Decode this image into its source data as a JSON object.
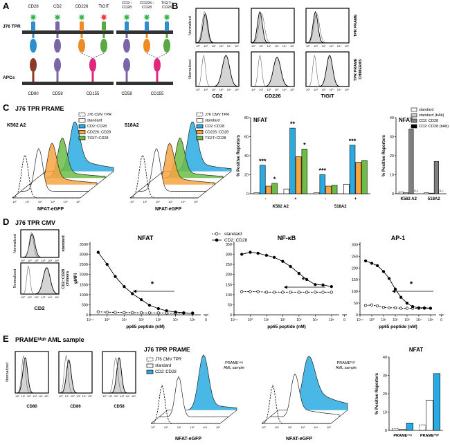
{
  "panel_letters": [
    "A",
    "B",
    "C",
    "D",
    "E"
  ],
  "hist_ticks": [
    "10⁰",
    "10¹",
    "10²",
    "10³",
    "10⁴",
    "10⁵"
  ],
  "panel_a": {
    "cell_label": "J76 TPR",
    "apc_label": "APCs",
    "receptors": [
      "CD28",
      "CD2",
      "CD226",
      "TIGIT"
    ],
    "chimeras": [
      "CD2::CD28",
      "CD226::CD28",
      "TIGIT::CD28"
    ],
    "ligands": [
      "CD80",
      "CD58",
      "CD155"
    ],
    "chimera_ligands": [
      "CD58",
      "CD155"
    ]
  },
  "panel_b": {
    "y_label": "Normalized",
    "row_labels": [
      "TPR PRAME",
      "TPR PRAME CHIMERAS"
    ],
    "x_labels": [
      "CD2",
      "CD226",
      "TIGIT"
    ]
  },
  "panel_c": {
    "title": "J76 TPR PRAME",
    "targets": [
      "K562 A2",
      "518A2"
    ],
    "x_label": "NFAT-eGFP",
    "legend": [
      {
        "name": "J76 CMV TPR",
        "color": "#000000",
        "dashed": true
      },
      {
        "name": "standard",
        "color": "#ffffff"
      },
      {
        "name": "CD2::CD28",
        "color": "#29abe2"
      },
      {
        "name": "CD226::CD28",
        "color": "#f7a541"
      },
      {
        "name": "TIGIT::CD28",
        "color": "#6cbd45"
      }
    ]
  },
  "panel_d": {
    "title": "J76 TPR CMV",
    "hist_y_label": "Normalized",
    "row_labels": [
      "standard",
      "CD2::CD28 chimera"
    ],
    "x_label": "CD2"
  },
  "panel_e": {
    "title": "PRAMEʰⁱᵍʰ AML sample",
    "hist_y_label": "Normalized",
    "x_labels": [
      "CD80",
      "CD86",
      "CD58"
    ],
    "reporter_title": "J76 TPR PRAME",
    "x_label": "NFAT-eGFP",
    "legend": [
      {
        "name": "J76 CMV TPR",
        "color": "#000000",
        "dashed": true
      },
      {
        "name": "standard",
        "color": "#ffffff"
      },
      {
        "name": "CD2::CD28",
        "color": "#29abe2"
      }
    ],
    "samples": [
      [
        "PRAMEⁿᵉᵍ",
        "AML sample"
      ],
      [
        "PRAMEʰⁱᵍʰ",
        "AML sample"
      ]
    ]
  },
  "chart_data": [
    {
      "type": "bar",
      "title": "NFAT",
      "y_label": "% Positive Reporters",
      "categories": [
        "-",
        "+",
        "-",
        "+"
      ],
      "groups": [
        "K562 A2",
        "518A2"
      ],
      "ylim": [
        0,
        80
      ],
      "yticks": [
        0,
        20,
        40,
        60,
        80
      ],
      "series": [
        {
          "color": "#ffffff",
          "values": [
            1,
            5,
            1,
            10
          ]
        },
        {
          "color": "#29abe2",
          "values": [
            30,
            69,
            20,
            51
          ]
        },
        {
          "color": "#f7a541",
          "values": [
            8,
            39,
            8,
            33
          ]
        },
        {
          "color": "#6cbd45",
          "values": [
            11,
            47,
            9,
            35
          ]
        }
      ],
      "annotations": [
        "***",
        "*",
        "**",
        "*",
        "***",
        "***"
      ]
    },
    {
      "type": "bar",
      "title": "NFAT",
      "y_label": "% Positive Reporters",
      "categories": [
        "K562 A2",
        "518A2"
      ],
      "ylim": [
        0,
        40
      ],
      "yticks": [
        0,
        10,
        20,
        30,
        40
      ],
      "legend": true,
      "series": [
        {
          "name": "standard",
          "color": "#ffffff",
          "values": [
            1,
            0.5
          ]
        },
        {
          "name": "standard (bAb)",
          "color": "#c8c8c8",
          "values": [
            0.5,
            0.3
          ]
        },
        {
          "name": "CD2::CD28",
          "color": "#808080",
          "values": [
            34,
            17
          ]
        },
        {
          "name": "CD2::CD28 (bAb)",
          "color": "#000000",
          "values": [
            null,
            null
          ],
          "value_labels": [
            "n.r.",
            "n.r."
          ]
        }
      ]
    },
    {
      "type": "line",
      "title": "NFAT",
      "y_label": "gMFI",
      "x_label": "pp65 peptide (nM)",
      "xlog": true,
      "x": [
        0.3,
        1,
        3,
        10,
        30,
        100,
        300,
        1000,
        3000,
        10000,
        30000,
        100000
      ],
      "xlim": [
        0.1,
        300000
      ],
      "xticks": [
        {
          "value": 0.1,
          "label": "10⁻¹"
        },
        {
          "value": 1,
          "label": "10⁰"
        },
        {
          "value": 10,
          "label": "10¹"
        },
        {
          "value": 100,
          "label": "10²"
        },
        {
          "value": 1000,
          "label": "10³"
        },
        {
          "value": 10000,
          "label": "10⁴"
        },
        {
          "value": 100000,
          "label": "10⁵"
        }
      ],
      "x_break_tick": 0,
      "ylim": [
        0,
        3600
      ],
      "yticks": [
        0,
        500,
        1000,
        1500,
        2000,
        2500,
        3000,
        3500
      ],
      "annotation": "*",
      "series": [
        {
          "color": "#000000",
          "dashed": true,
          "marker": "open",
          "values": [
            150,
            130,
            120,
            110,
            105,
            100,
            95,
            95,
            90,
            90,
            90,
            90
          ]
        },
        {
          "color": "#000000",
          "marker": "filled",
          "values": [
            3100,
            2500,
            1900,
            1400,
            1050,
            750,
            480,
            310,
            200,
            140,
            100,
            80
          ]
        }
      ]
    },
    {
      "type": "line",
      "title": "NF-κB",
      "x_label": "pp65 peptide (nM)",
      "xlog": true,
      "x": [
        0.3,
        1,
        3,
        10,
        30,
        100,
        300,
        1000,
        3000,
        10000,
        30000,
        100000
      ],
      "xlim": [
        0.1,
        300000
      ],
      "xticks": [
        {
          "value": 0.1,
          "label": "10⁻¹"
        },
        {
          "value": 1,
          "label": "10⁰"
        },
        {
          "value": 10,
          "label": "10¹"
        },
        {
          "value": 100,
          "label": "10²"
        },
        {
          "value": 1000,
          "label": "10³"
        },
        {
          "value": 10000,
          "label": "10⁴"
        },
        {
          "value": 100000,
          "label": "10⁵"
        }
      ],
      "x_break_tick": 0,
      "ylim": [
        0,
        360
      ],
      "yticks": [
        0,
        50,
        100,
        150,
        200,
        250,
        300,
        350
      ],
      "annotation": "*",
      "legend": true,
      "series": [
        {
          "name": "standard",
          "color": "#000000",
          "dashed": true,
          "marker": "open",
          "values": [
            115,
            115,
            115,
            112,
            112,
            112,
            112,
            112,
            112,
            112,
            112,
            112
          ]
        },
        {
          "name": "CD2::CD28",
          "color": "#000000",
          "marker": "filled",
          "values": [
            300,
            310,
            305,
            295,
            285,
            265,
            240,
            205,
            175,
            150,
            148,
            140
          ]
        }
      ]
    },
    {
      "type": "line",
      "title": "AP-1",
      "x_label": "pp65 peptide (nM)",
      "xlog": true,
      "x": [
        0.3,
        1,
        3,
        10,
        30,
        100,
        300,
        1000,
        3000,
        10000,
        30000,
        100000
      ],
      "xlim": [
        0.1,
        300000
      ],
      "xticks": [
        {
          "value": 0.1,
          "label": "10⁻¹"
        },
        {
          "value": 1,
          "label": "10⁰"
        },
        {
          "value": 10,
          "label": "10¹"
        },
        {
          "value": 100,
          "label": "10²"
        },
        {
          "value": 1000,
          "label": "10³"
        },
        {
          "value": 10000,
          "label": "10⁴"
        },
        {
          "value": 100000,
          "label": "10⁵"
        }
      ],
      "x_break_tick": 0,
      "ylim": [
        0,
        310
      ],
      "yticks": [
        0,
        50,
        100,
        150,
        200,
        250,
        300
      ],
      "annotation": "*",
      "series": [
        {
          "color": "#000000",
          "dashed": true,
          "marker": "open",
          "values": [
            40,
            42,
            38,
            32,
            30,
            30,
            28,
            28,
            28,
            28,
            28,
            28
          ]
        },
        {
          "color": "#000000",
          "marker": "filled",
          "values": [
            230,
            220,
            210,
            185,
            155,
            110,
            75,
            50,
            35,
            30,
            30,
            28
          ]
        }
      ]
    },
    {
      "type": "bar",
      "title": "NFAT",
      "y_label": "% Positive Reporters",
      "categories": [
        "PRAMEⁿᵉᵍ",
        "PRAMEʰⁱᵍʰ"
      ],
      "ylim": [
        0,
        40
      ],
      "yticks": [
        0,
        10,
        20,
        30,
        40
      ],
      "series": [
        {
          "color": "#000000",
          "dashed": true,
          "values": [
            1,
            3
          ]
        },
        {
          "color": "#ffffff",
          "values": [
            0.5,
            16.5
          ]
        },
        {
          "color": "#29abe2",
          "values": [
            4,
            31
          ]
        }
      ]
    }
  ]
}
